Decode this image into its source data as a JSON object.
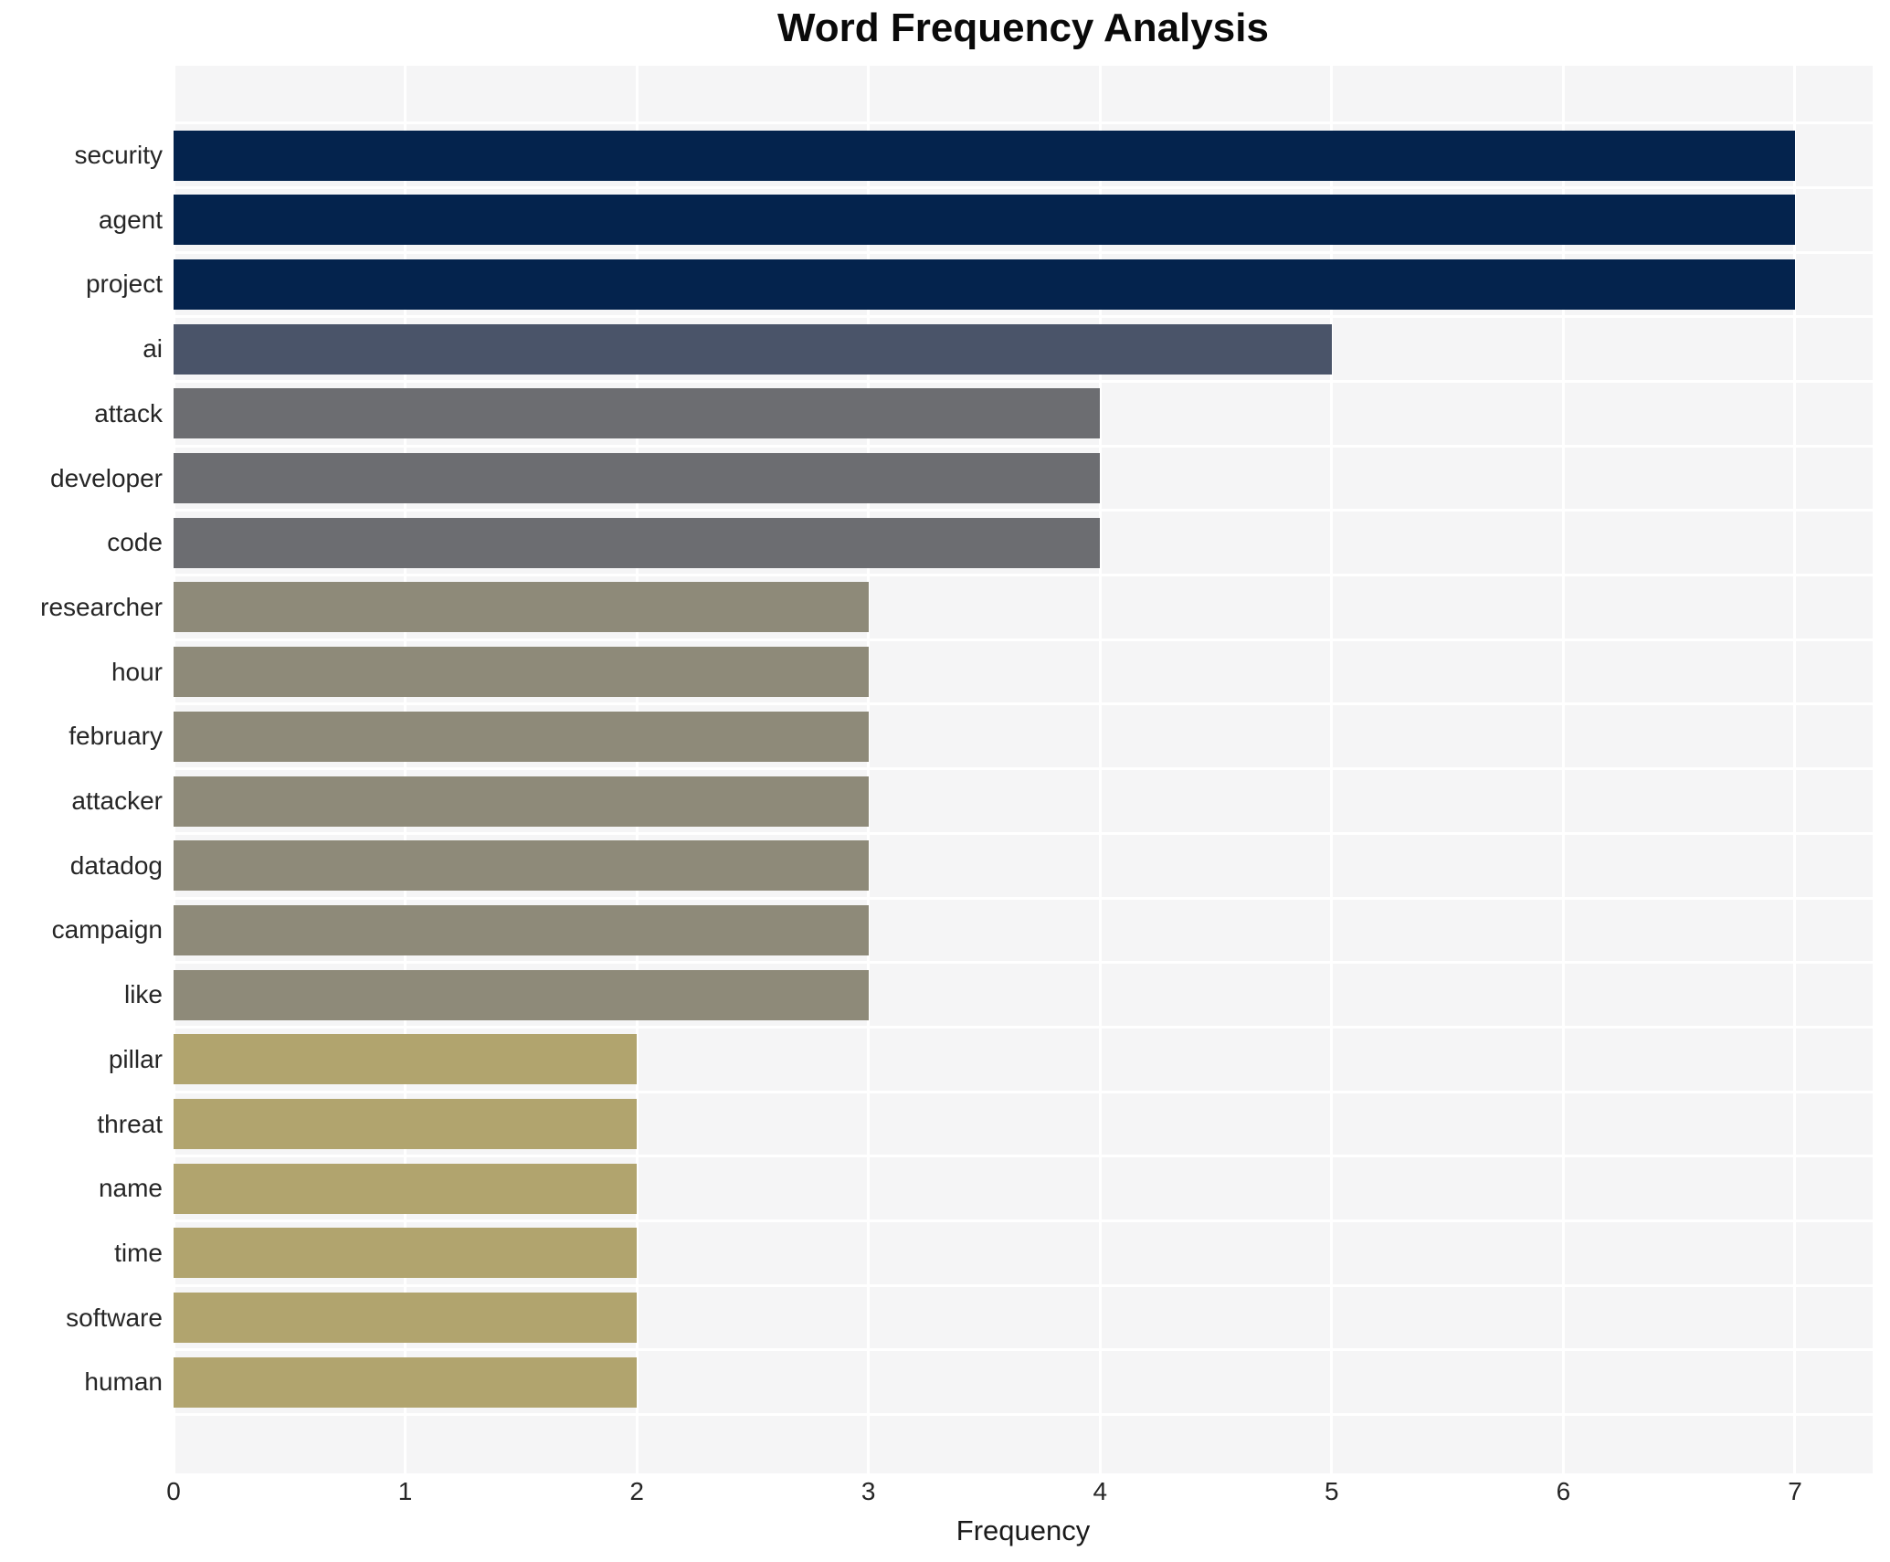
{
  "chart_data": {
    "type": "bar",
    "orientation": "horizontal",
    "title": "Word Frequency Analysis",
    "xlabel": "Frequency",
    "ylabel": "",
    "categories": [
      "security",
      "agent",
      "project",
      "ai",
      "attack",
      "developer",
      "code",
      "researcher",
      "hour",
      "february",
      "attacker",
      "datadog",
      "campaign",
      "like",
      "pillar",
      "threat",
      "name",
      "time",
      "software",
      "human"
    ],
    "values": [
      7,
      7,
      7,
      5,
      4,
      4,
      4,
      3,
      3,
      3,
      3,
      3,
      3,
      3,
      2,
      2,
      2,
      2,
      2,
      2
    ],
    "xticks": [
      0,
      1,
      2,
      3,
      4,
      5,
      6,
      7
    ],
    "xtick_labels": [
      "0",
      "1",
      "2",
      "3",
      "4",
      "5",
      "6",
      "7"
    ],
    "xlim": [
      0,
      7.35
    ],
    "grid": true,
    "legend_position": "none",
    "colors_by_value": {
      "7": "#04234d",
      "5": "#4a5469",
      "4": "#6c6d71",
      "3": "#8e8a79",
      "2": "#b1a46e"
    },
    "plot_background": "#f5f5f6",
    "grid_color": "#ffffff",
    "title_color": "#0a0a0a",
    "label_color": "#262626"
  }
}
